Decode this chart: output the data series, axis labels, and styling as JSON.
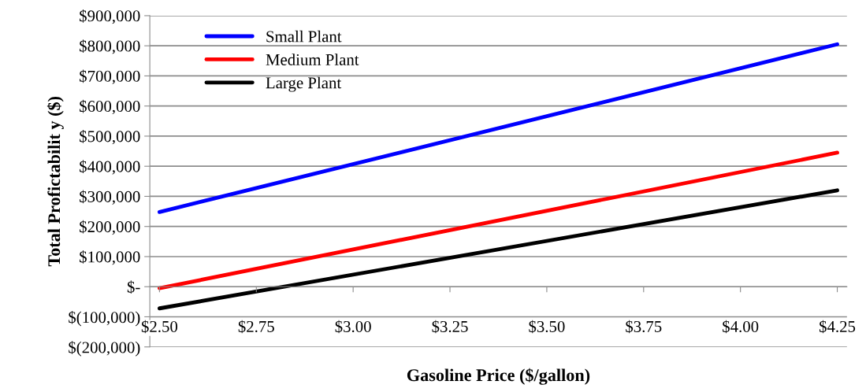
{
  "chart_data": {
    "type": "line",
    "xlabel": "Gasoline Price ($/gallon)",
    "ylabel": "Total Profictabilit y ($)",
    "x": [
      2.5,
      4.25
    ],
    "series": [
      {
        "name": "Small Plant",
        "color": "#0000ff",
        "values": [
          248000,
          805000
        ]
      },
      {
        "name": "Medium Plant",
        "color": "#ff0000",
        "values": [
          -5000,
          445000
        ]
      },
      {
        "name": "Large Plant",
        "color": "#000000",
        "values": [
          -72000,
          320000
        ]
      }
    ],
    "xlim": [
      2.475,
      4.275
    ],
    "xticks": [
      {
        "value": 2.5,
        "label": "$2.50"
      },
      {
        "value": 2.75,
        "label": "$2.75"
      },
      {
        "value": 3.0,
        "label": "$3.00"
      },
      {
        "value": 3.25,
        "label": "$3.25"
      },
      {
        "value": 3.5,
        "label": "$3.50"
      },
      {
        "value": 3.75,
        "label": "$3.75"
      },
      {
        "value": 4.0,
        "label": "$4.00"
      },
      {
        "value": 4.25,
        "label": "$4.25"
      }
    ],
    "ylim": [
      -200000,
      900000
    ],
    "yticks": [
      {
        "value": -200000,
        "label": "$(200,000)"
      },
      {
        "value": -100000,
        "label": "$(100,000)"
      },
      {
        "value": 0,
        "label": "$-"
      },
      {
        "value": 100000,
        "label": "$100,000"
      },
      {
        "value": 200000,
        "label": "$200,000"
      },
      {
        "value": 300000,
        "label": "$300,000"
      },
      {
        "value": 400000,
        "label": "$400,000"
      },
      {
        "value": 500000,
        "label": "$500,000"
      },
      {
        "value": 600000,
        "label": "$600,000"
      },
      {
        "value": 700000,
        "label": "$700,000"
      },
      {
        "value": 800000,
        "label": "$800,000"
      },
      {
        "value": 900000,
        "label": "$900,000"
      }
    ],
    "grid": "y",
    "legend": "top left",
    "marker": "none",
    "line_style": "solid"
  }
}
